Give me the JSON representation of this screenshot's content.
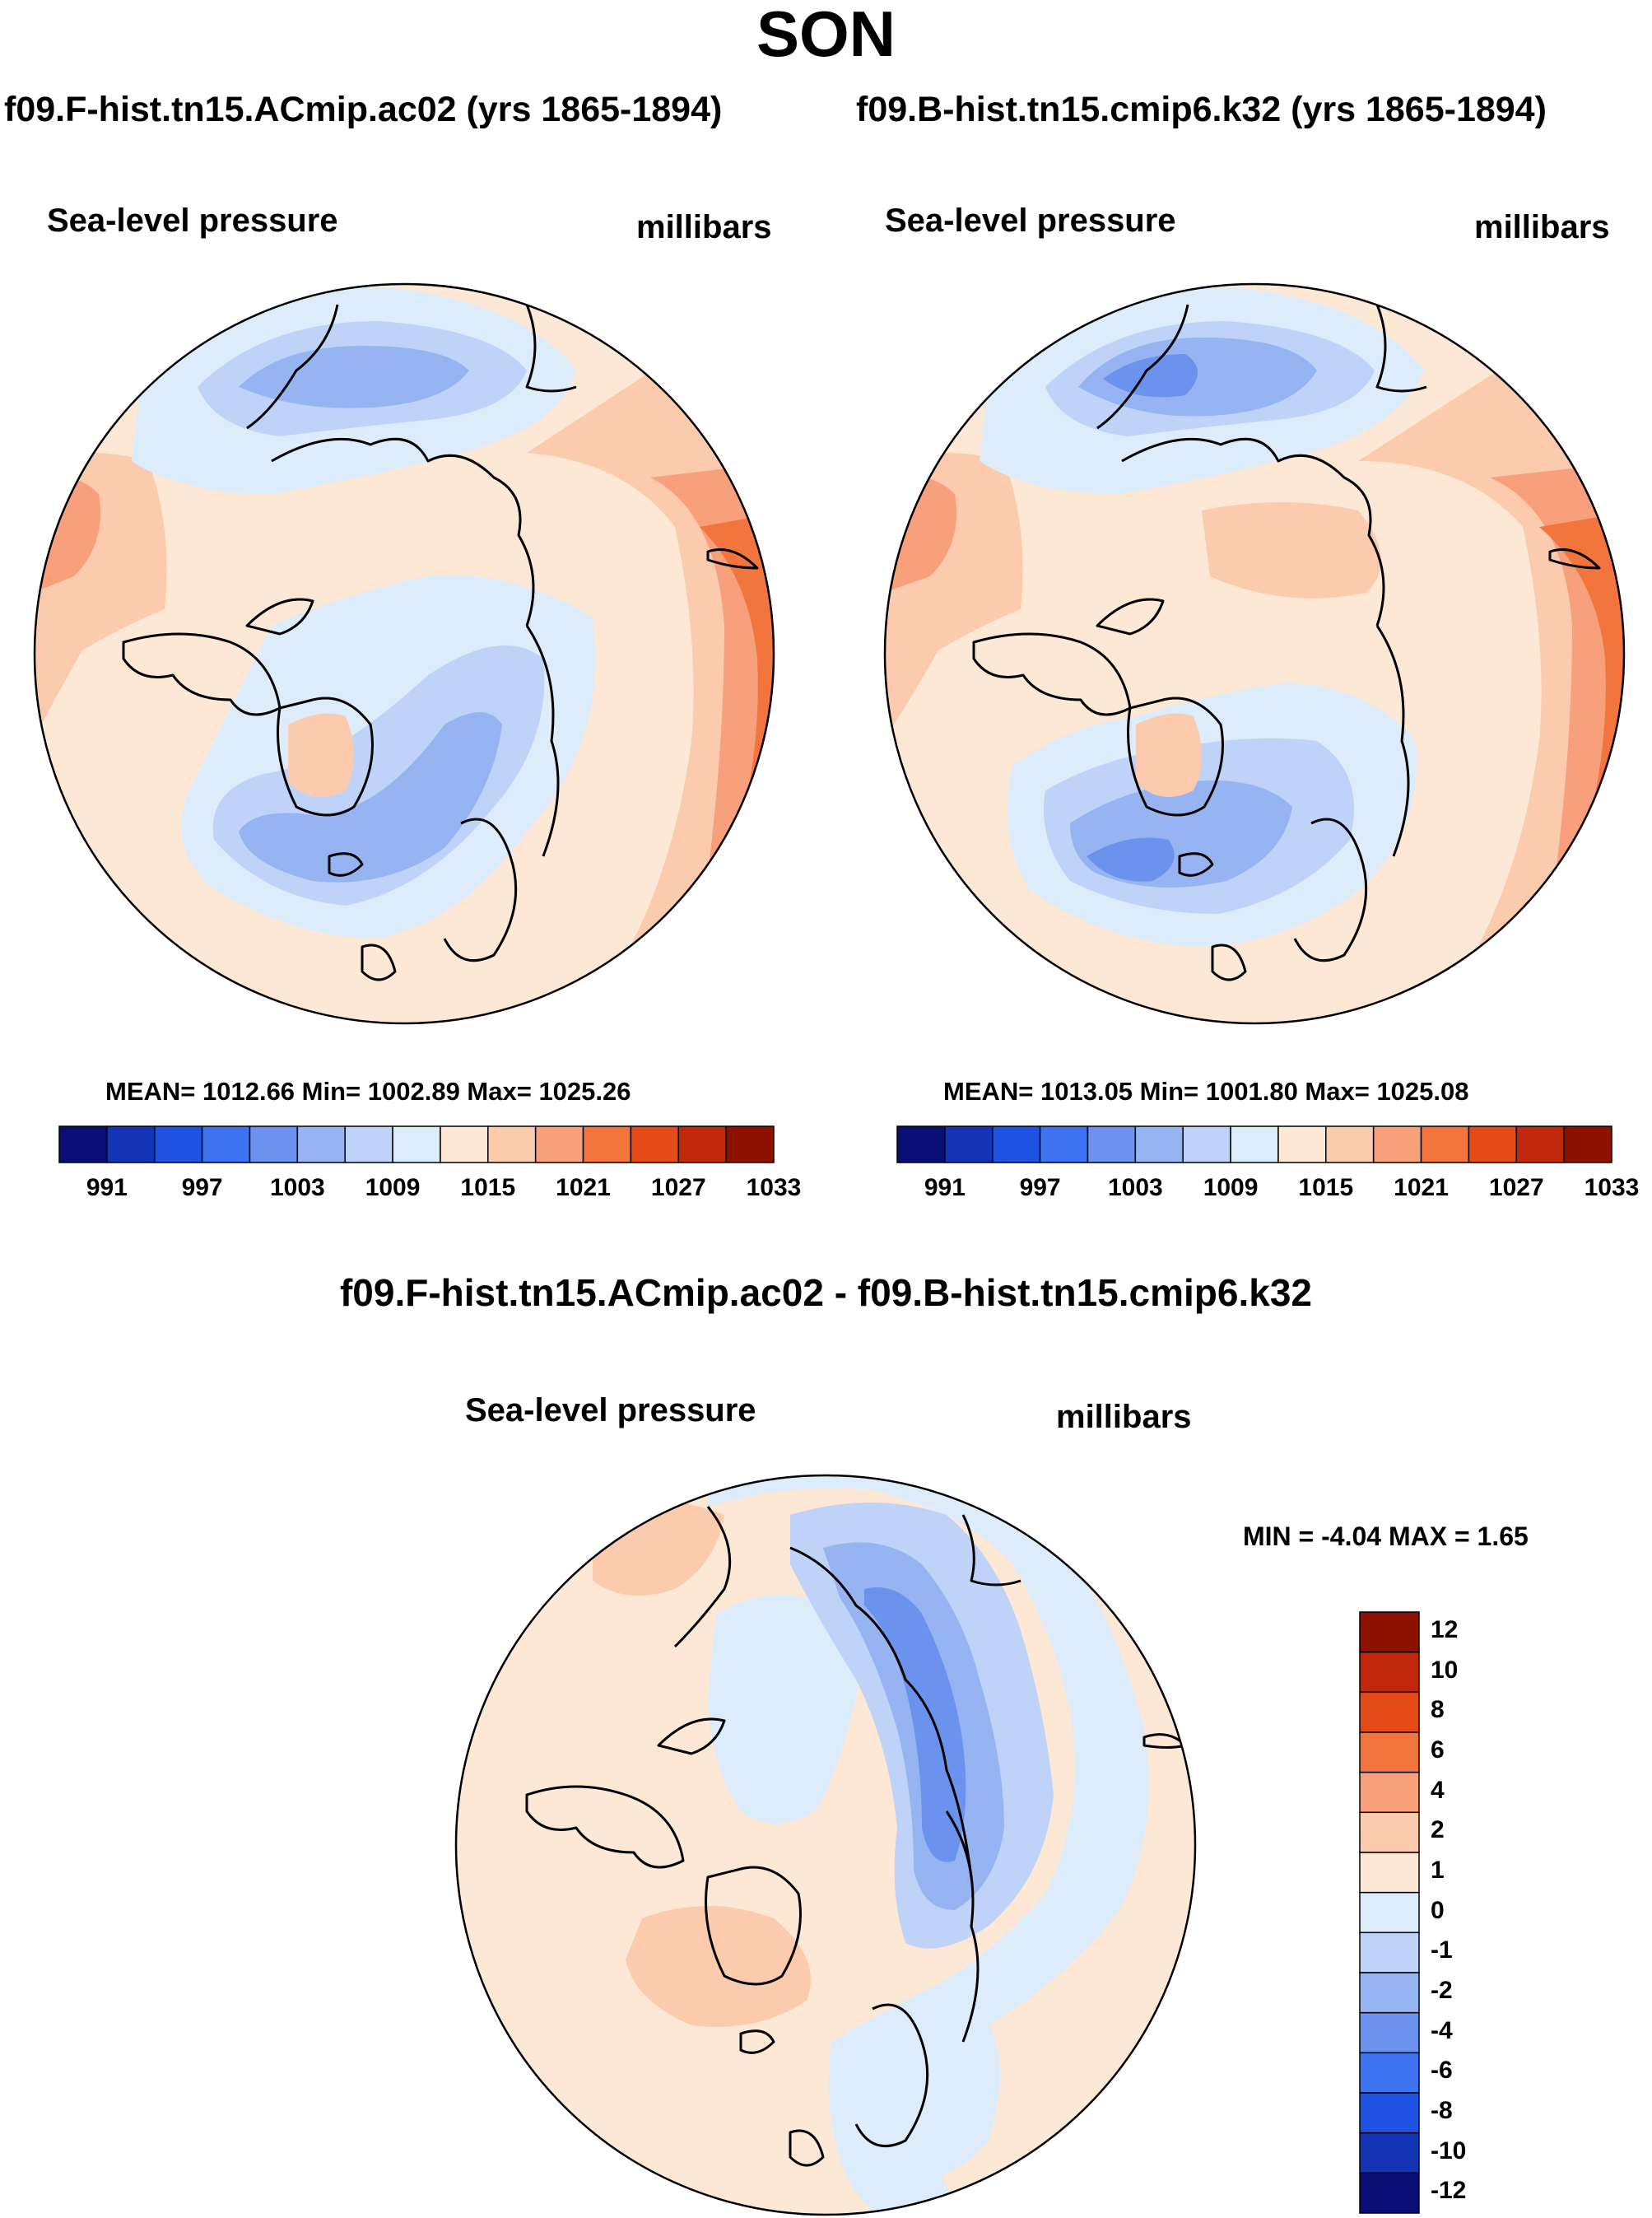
{
  "season": "SON",
  "panels": [
    {
      "heading": "f09.F-hist.tn15.ACmip.ac02 (yrs 1865-1894)",
      "variable": "Sea-level pressure",
      "units": "millibars",
      "stats": "MEAN= 1012.66  Min= 1002.89  Max= 1025.26"
    },
    {
      "heading": "f09.B-hist.tn15.cmip6.k32 (yrs 1865-1894)",
      "variable": "Sea-level pressure",
      "units": "millibars",
      "stats": "MEAN= 1013.05  Min= 1001.80  Max= 1025.08"
    }
  ],
  "colorbar": {
    "colors": [
      "#0a0d74",
      "#1334b4",
      "#1f52e3",
      "#3f72f0",
      "#6b93ee",
      "#97b4f2",
      "#bed3f7",
      "#ddecfb",
      "#fde8d6",
      "#fccbad",
      "#f8a07c",
      "#f2753e",
      "#e54b19",
      "#c1270b",
      "#8c1100"
    ],
    "tick_labels": [
      "991",
      "997",
      "1003",
      "1009",
      "1015",
      "1021",
      "1027",
      "1033"
    ]
  },
  "difference": {
    "heading": "f09.F-hist.tn15.ACmip.ac02 - f09.B-hist.tn15.cmip6.k32",
    "variable": "Sea-level pressure",
    "units": "millibars",
    "minmax": "MIN =  -4.04 MAX =   1.65",
    "colorbar": {
      "colors_top_to_bottom": [
        "#8c1100",
        "#c1270b",
        "#e54b19",
        "#f2753e",
        "#f8a07c",
        "#fccbad",
        "#fde8d6",
        "#ddecfb",
        "#bed3f7",
        "#97b4f2",
        "#6b93ee",
        "#3f72f0",
        "#1f52e3",
        "#1334b4",
        "#0a0d74"
      ],
      "tick_labels": [
        "12",
        "10",
        "8",
        "6",
        "4",
        "2",
        "1",
        "0",
        "-1",
        "-2",
        "-4",
        "-6",
        "-8",
        "-10",
        "-12"
      ]
    }
  }
}
